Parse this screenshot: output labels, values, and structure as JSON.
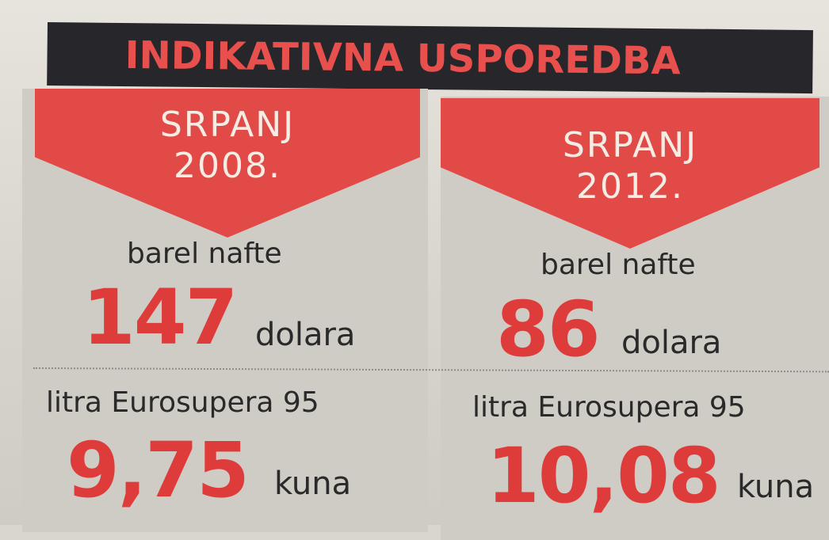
{
  "header": {
    "title": "INDIKATIVNA USPOREDBA"
  },
  "columns": [
    {
      "month": "SRPANJ",
      "year": "2008.",
      "barrel_label": "barel nafte",
      "barrel_value": "147",
      "barrel_unit": "dolara",
      "fuel_label": "litra Eurosupera 95",
      "fuel_value": "9,75",
      "fuel_unit": "kuna"
    },
    {
      "month": "SRPANJ",
      "year": "2012.",
      "barrel_label": "barel nafte",
      "barrel_value": "86",
      "barrel_unit": "dolara",
      "fuel_label": "litra Eurosupera 95",
      "fuel_value": "10,08",
      "fuel_unit": "kuna"
    }
  ],
  "colors": {
    "accent_red": "#e24a48",
    "value_red": "#de3c3a",
    "header_bg": "#27272b",
    "paper": "#d8d5cd"
  }
}
